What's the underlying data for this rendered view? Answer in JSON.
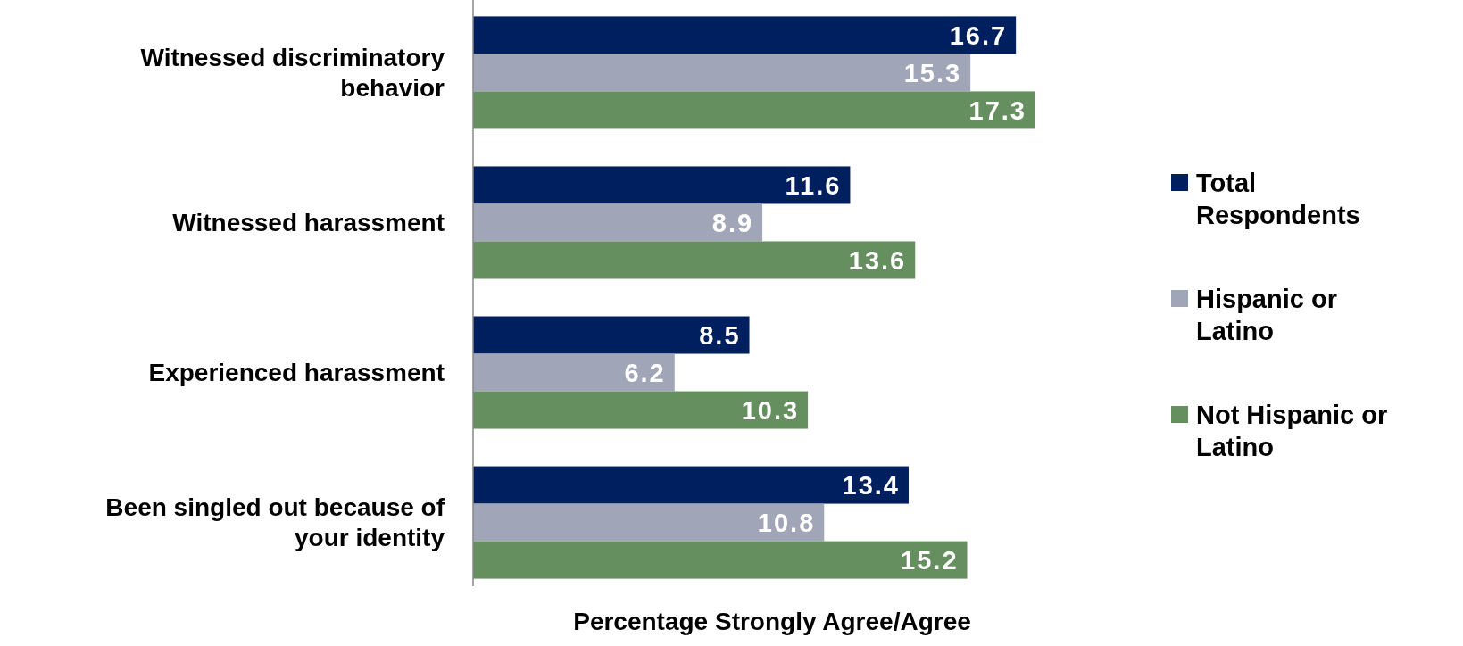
{
  "chart_data": {
    "type": "bar",
    "orientation": "horizontal",
    "xlabel": "Percentage Strongly Agree/Agree",
    "categories": [
      "Witnessed discriminatory behavior",
      "Witnessed harassment",
      "Experienced harassment",
      "Been singled out because of your identity"
    ],
    "series": [
      {
        "name": "Total Respondents",
        "color": "#001f5f",
        "values": [
          16.7,
          11.6,
          8.5,
          13.4
        ]
      },
      {
        "name": "Hispanic or Latino",
        "color": "#a0a5b8",
        "values": [
          15.3,
          8.9,
          6.2,
          10.8
        ]
      },
      {
        "name": "Not Hispanic or Latino",
        "color": "#668f5f",
        "values": [
          17.3,
          13.6,
          10.3,
          15.2
        ]
      }
    ],
    "data_labels": true,
    "legend": "right"
  }
}
